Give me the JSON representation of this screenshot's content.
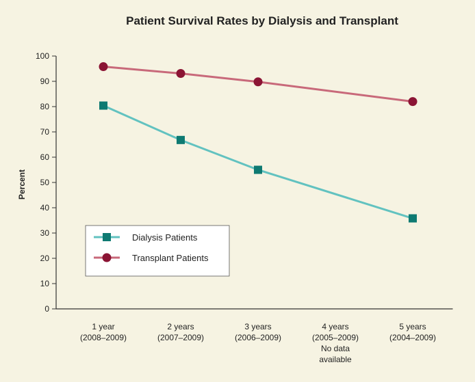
{
  "chart_data": {
    "type": "line",
    "title": "Patient Survival Rates by Dialysis and Transplant",
    "y_label": "Percent",
    "categories": [
      "1 year\n(2008–2009)",
      "2 years\n(2007–2009)",
      "3 years\n(2006–2009)",
      "4 years\n(2005–2009)\nNo data\navailable",
      "5 years\n(2004–2009)"
    ],
    "series": [
      {
        "name": "Dialysis Patients",
        "color": "#62c2c0",
        "marker_color": "#0e7a72",
        "marker": "square",
        "values": [
          80.4,
          66.8,
          55.0,
          null,
          35.8
        ]
      },
      {
        "name": "Transplant Patients",
        "color": "#c8697a",
        "marker_color": "#8b1434",
        "marker": "circle",
        "values": [
          95.8,
          93.1,
          89.8,
          null,
          82.0
        ]
      }
    ],
    "ylim": [
      0,
      100
    ],
    "yticks": [
      0,
      10,
      20,
      30,
      40,
      50,
      60,
      70,
      80,
      90,
      100
    ],
    "legend": "lower-left"
  }
}
